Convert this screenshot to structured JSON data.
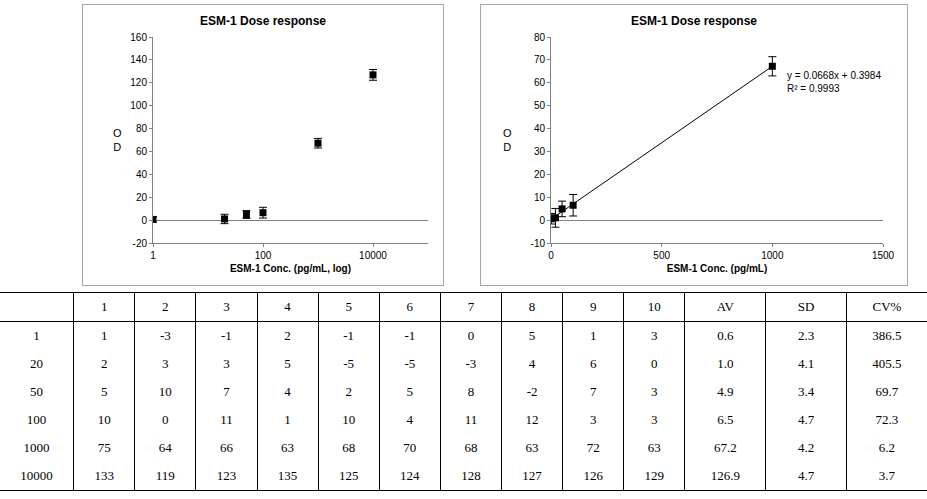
{
  "chart_data": [
    {
      "type": "scatter",
      "title": "ESM-1 Dose response",
      "x_label": "ESM-1 Conc. (pg/mL, log)",
      "y_label": "O D",
      "log": "x",
      "x": [
        1,
        20,
        50,
        100,
        1000,
        10000
      ],
      "values": [
        0.6,
        1.0,
        4.9,
        6.5,
        67.2,
        126.9
      ],
      "error": [
        2.3,
        4.1,
        3.4,
        4.7,
        4.2,
        4.7
      ],
      "color": "#000000",
      "marker": "square",
      "xlim": [
        1,
        100000
      ],
      "xticks": [
        1,
        100,
        10000
      ],
      "ylim": [
        -20,
        160
      ],
      "yticks": [
        -20,
        0,
        20,
        40,
        60,
        80,
        100,
        120,
        140,
        160
      ],
      "grid": false
    },
    {
      "type": "scatter",
      "title": "ESM-1 Dose response",
      "x_label": "ESM-1 Conc. (pg/mL)",
      "y_label": "O D",
      "x": [
        1,
        20,
        50,
        100,
        1000
      ],
      "values": [
        0.6,
        1.0,
        4.9,
        6.5,
        67.2
      ],
      "error": [
        2.3,
        4.1,
        3.4,
        4.7,
        4.2
      ],
      "color": "#000000",
      "marker": "square",
      "trendline": {
        "slope": 0.0668,
        "intercept": 0.3984
      },
      "annotations": [
        "y = 0.0668x + 0.3984",
        "R² = 0.9993"
      ],
      "xlim": [
        0,
        1500
      ],
      "xticks": [
        0,
        500,
        1000,
        1500
      ],
      "ylim": [
        -10,
        80
      ],
      "yticks": [
        -10,
        0,
        10,
        20,
        30,
        40,
        50,
        60,
        70,
        80
      ],
      "grid": false
    }
  ],
  "table": {
    "rows": [
      [
        "",
        "1",
        "2",
        "3",
        "4",
        "5",
        "6",
        "7",
        "8",
        "9",
        "10",
        "AV",
        "SD",
        "CV%"
      ],
      [
        "1",
        "1",
        "-3",
        "-1",
        "2",
        "-1",
        "-1",
        "0",
        "5",
        "1",
        "3",
        "0.6",
        "2.3",
        "386.5"
      ],
      [
        "20",
        "2",
        "3",
        "3",
        "5",
        "-5",
        "-5",
        "-3",
        "4",
        "6",
        "0",
        "1.0",
        "4.1",
        "405.5"
      ],
      [
        "50",
        "5",
        "10",
        "7",
        "4",
        "2",
        "5",
        "8",
        "-2",
        "7",
        "3",
        "4.9",
        "3.4",
        "69.7"
      ],
      [
        "100",
        "10",
        "0",
        "11",
        "1",
        "10",
        "4",
        "11",
        "12",
        "3",
        "3",
        "6.5",
        "4.7",
        "72.3"
      ],
      [
        "1000",
        "75",
        "64",
        "66",
        "63",
        "68",
        "70",
        "68",
        "63",
        "72",
        "63",
        "67.2",
        "4.2",
        "6.2"
      ],
      [
        "10000",
        "133",
        "119",
        "123",
        "135",
        "125",
        "124",
        "128",
        "127",
        "126",
        "129",
        "126.9",
        "4.7",
        "3.7"
      ]
    ]
  }
}
